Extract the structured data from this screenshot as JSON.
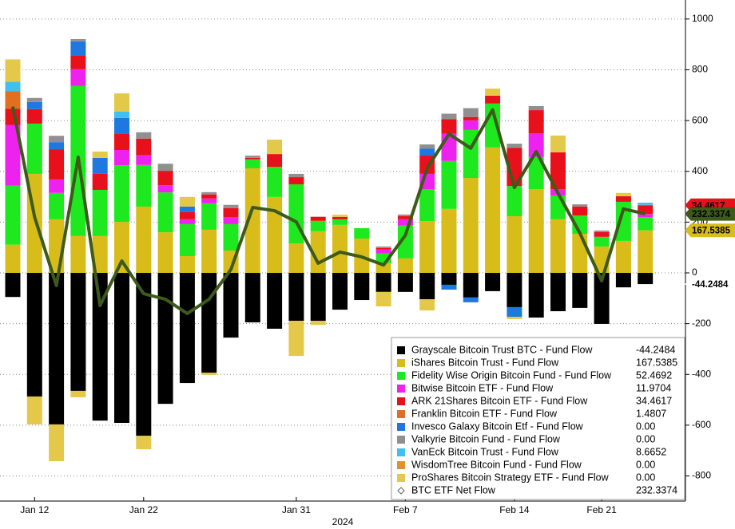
{
  "chart_data": {
    "type": "bar",
    "stacked": true,
    "categories": [
      null,
      "Jan 12",
      null,
      null,
      null,
      null,
      "Jan 22",
      null,
      null,
      null,
      null,
      null,
      null,
      "Jan 31",
      null,
      null,
      null,
      null,
      "Feb 7",
      null,
      null,
      null,
      null,
      "Feb 14",
      null,
      null,
      null,
      "Feb 21",
      null,
      null
    ],
    "xlabel": "2024",
    "ylim": [
      -899,
      1075
    ],
    "yticks": [
      -800,
      -600,
      -400,
      -200,
      0,
      200,
      400,
      600,
      800,
      1000
    ],
    "grid": true,
    "y_axis_side": "right",
    "legend": "lower right",
    "series": [
      {
        "name": "Grayscale Bitcoin Trust BTC - Fund Flow",
        "color": "#000000",
        "last_label": "-44.2484",
        "tag": true,
        "tag_text": "#000000",
        "tag_bg": "#ffffff",
        "values": [
          -95,
          -487,
          -597,
          -465,
          -582,
          -591,
          -642,
          -516,
          -434,
          -393,
          -255,
          -195,
          -220,
          -189,
          -189,
          -145,
          -107,
          -75,
          -75,
          -104,
          -47,
          -97,
          -72,
          -135,
          -176,
          -151,
          -138,
          -201,
          -57,
          -44.2484
        ]
      },
      {
        "name": "iShares Bitcoin Trust - Fund Flow",
        "color": "#d8bc1a",
        "last_label": "167.5385",
        "tag": true,
        "tag_text": "#000000",
        "tag_bg": "#d8bc1a",
        "values": [
          111,
          390,
          211,
          145,
          145,
          201,
          261,
          160,
          66,
          170,
          88,
          412,
          299,
          116,
          164,
          189,
          135,
          38,
          57,
          204,
          252,
          374,
          494,
          223,
          330,
          211,
          154,
          104,
          126,
          167.5385
        ]
      },
      {
        "name": "Fidelity Wise Origin Bitcoin Fund - Fund Flow",
        "color": "#1ee81e",
        "last_label": "52.4692",
        "values": [
          233,
          198,
          104,
          591,
          182,
          223,
          164,
          157,
          126,
          104,
          104,
          35,
          119,
          233,
          41,
          22,
          41,
          38,
          129,
          126,
          189,
          189,
          173,
          119,
          126,
          94,
          72,
          38,
          154,
          52.4692
        ]
      },
      {
        "name": "Bitwise Bitcoin ETF - Fund Flow",
        "color": "#ee22ee",
        "last_label": "11.9704",
        "values": [
          239,
          0,
          53,
          66,
          0,
          60,
          38,
          28,
          19,
          19,
          28,
          0,
          0,
          0,
          0,
          0,
          0,
          16,
          25,
          60,
          107,
          38,
          0,
          0,
          94,
          25,
          0,
          0,
          0,
          11.9704
        ]
      },
      {
        "name": "ARK 21Shares Bitcoin ETF - Fund Flow",
        "color": "#e8101a",
        "last_label": "34.4617",
        "tag": true,
        "tag_text": "#000000",
        "tag_bg": "#e8101a",
        "values": [
          63,
          57,
          119,
          53,
          63,
          63,
          66,
          57,
          28,
          16,
          35,
          6,
          50,
          28,
          16,
          9,
          0,
          6,
          13,
          72,
          57,
          13,
          31,
          151,
          91,
          145,
          35,
          19,
          22,
          34.4617
        ]
      },
      {
        "name": "Franklin Bitcoin ETF - Fund Flow",
        "color": "#e07020",
        "last_label": "1.4807",
        "values": [
          69,
          0,
          0,
          0,
          0,
          0,
          0,
          0,
          0,
          0,
          0,
          0,
          0,
          0,
          0,
          0,
          0,
          0,
          0,
          0,
          0,
          0,
          0,
          0,
          0,
          0,
          0,
          0,
          0,
          1.4807
        ]
      },
      {
        "name": "Invesco Galaxy Bitcoin Etf - Fund Flow",
        "color": "#1e78e0",
        "last_label": "0.00",
        "values": [
          0,
          28,
          28,
          57,
          63,
          63,
          0,
          0,
          22,
          0,
          0,
          0,
          0,
          0,
          0,
          0,
          0,
          0,
          0,
          28,
          -19,
          -19,
          0,
          -38,
          0,
          0,
          0,
          0,
          0,
          0
        ]
      },
      {
        "name": "Valkyrie Bitcoin Fund - Fund Flow",
        "color": "#909090",
        "last_label": "0.00",
        "values": [
          0,
          16,
          25,
          9,
          0,
          0,
          25,
          28,
          0,
          9,
          13,
          9,
          0,
          13,
          0,
          0,
          0,
          6,
          6,
          16,
          22,
          35,
          0,
          16,
          16,
          0,
          9,
          6,
          0,
          0
        ]
      },
      {
        "name": "VanEck Bitcoin Trust - Fund Flow",
        "color": "#40c0f0",
        "last_label": "8.6652",
        "values": [
          38,
          0,
          0,
          0,
          0,
          25,
          0,
          0,
          0,
          0,
          0,
          0,
          0,
          0,
          0,
          0,
          0,
          0,
          0,
          0,
          0,
          0,
          0,
          0,
          0,
          0,
          0,
          0,
          0,
          8.6652
        ]
      },
      {
        "name": "WisdomTree Bitcoin Fund - Fund Flow",
        "color": "#e09030",
        "last_label": "0.00",
        "values": [
          0,
          0,
          0,
          0,
          0,
          0,
          0,
          0,
          0,
          0,
          0,
          0,
          0,
          0,
          0,
          0,
          0,
          0,
          0,
          0,
          0,
          0,
          0,
          0,
          0,
          0,
          0,
          0,
          0,
          0
        ]
      },
      {
        "name": "ProShares Bitcoin Strategy ETF - Fund Flow",
        "color": "#e4c84a",
        "last_label": "0.00",
        "values": [
          88,
          -110,
          -145,
          -25,
          25,
          72,
          -53,
          0,
          38,
          -9,
          0,
          0,
          57,
          -138,
          -16,
          9,
          0,
          -57,
          0,
          -44,
          0,
          0,
          28,
          -9,
          0,
          66,
          0,
          0,
          13,
          0
        ]
      },
      {
        "name": "BTC ETF Net Flow",
        "type": "line",
        "color": "#3d5a1a",
        "last_label": "232.3374",
        "tag": true,
        "tag_text": "#ffffff",
        "tag_bg": "#3d5a1a",
        "values": [
          655,
          220,
          -50,
          456,
          -129,
          47,
          -82,
          -104,
          -160,
          -104,
          13,
          258,
          245,
          201,
          38,
          82,
          63,
          31,
          148,
          412,
          547,
          491,
          642,
          336,
          478,
          314,
          157,
          -31,
          252,
          232.3374
        ]
      }
    ]
  }
}
